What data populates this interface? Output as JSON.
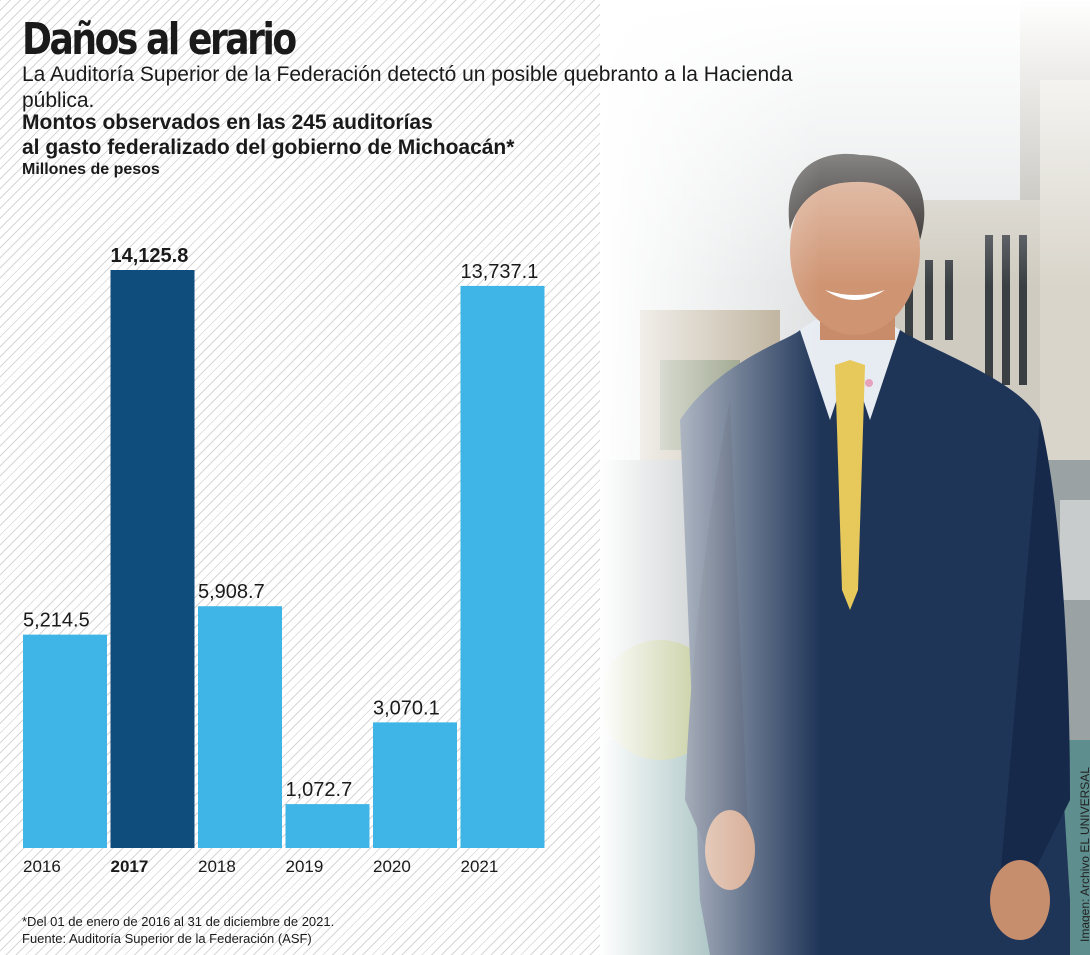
{
  "header": {
    "title": "Daños al erario",
    "subtitle": "La Auditoría Superior de la Federación detectó un posible quebranto a la Hacienda pública."
  },
  "chart_data": {
    "type": "bar",
    "title_line1": "Montos observados en las 245 auditorías",
    "title_line2": "al gasto federalizado del gobierno de Michoacán*",
    "ylabel": "Millones de pesos",
    "categories": [
      "2016",
      "2017",
      "2018",
      "2019",
      "2020",
      "2021"
    ],
    "values": [
      5214.5,
      14125.8,
      5908.7,
      1072.7,
      3070.1,
      13737.1
    ],
    "labels": [
      "5,214.5",
      "14,125.8",
      "5,908.7",
      "1,072.7",
      "3,070.1",
      "13,737.1"
    ],
    "highlight_index": 1,
    "ylim": [
      0,
      14125.8
    ],
    "colors": {
      "normal": "#3fb4e6",
      "highlight": "#0f4d7c"
    }
  },
  "footnote": {
    "line1": "*Del 01 de enero de 2016 al 31 de diciembre de 2021.",
    "line2": "Fuente: Auditoría Superior de la Federación (ASF)"
  },
  "credit": "Imagen: Archivo EL UNIVERSAL"
}
